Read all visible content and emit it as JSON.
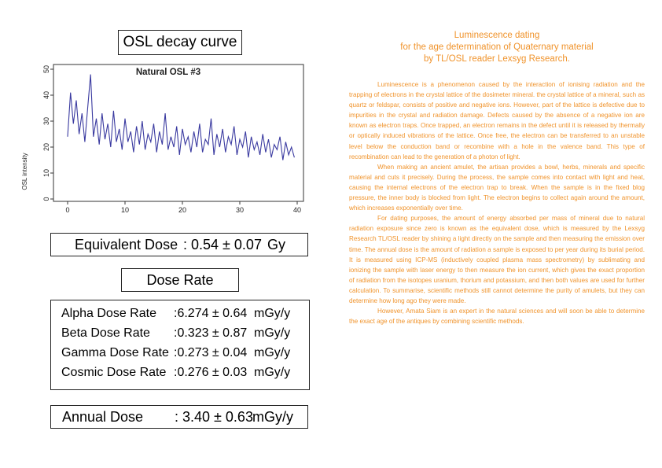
{
  "left": {
    "chart_title_box": "OSL decay curve",
    "equivalent_dose": {
      "label": "Equivalent Dose",
      "value": ": 0.54 ± 0.07",
      "unit": "Gy"
    },
    "dose_rate_title": "Dose Rate",
    "rates": [
      {
        "name": "Alpha Dose Rate",
        "value": ":6.274 ± 0.64",
        "unit": "mGy/y"
      },
      {
        "name": "Beta Dose Rate",
        "value": ":0.323 ± 0.87",
        "unit": "mGy/y"
      },
      {
        "name": "Gamma Dose Rate",
        "value": ":0.273 ± 0.04",
        "unit": "mGy/y"
      },
      {
        "name": "Cosmic Dose Rate",
        "value": ":0.276 ± 0.03",
        "unit": "mGy/y"
      }
    ],
    "annual_dose": {
      "label": "Annual Dose",
      "value": ": 3.40 ± 0.63",
      "unit": "mGy/y"
    }
  },
  "right": {
    "title_lines": [
      "Luminescence dating",
      "for the age determination of Quaternary material",
      "by TL/OSL reader Lexsyg Research."
    ],
    "paragraphs": [
      "Luminescence is a phenomenon caused by the interaction of ionising radiation and the trapping of electrons in the crystal lattice of the dosimeter mineral. the crystal lattice of a mineral, such as quartz or feldspar, consists of positive and negative ions. However, part of the lattice is defective due to impurities in the crystal and radiation damage. Defects caused by the absence of a negative ion are known as electron traps. Once trapped, an electron remains in the defect until it is released by thermally or optically induced vibrations of the lattice. Once free, the electron can be transferred to an unstable level below the conduction band or recombine with a hole in the valence band. This type of recombination can lead to the generation of a photon of light.",
      "When making an ancient amulet, the artisan provides a bowl, herbs, minerals and specific material and cuts it precisely. During the process, the sample comes into contact with light and heat, causing the internal electrons of the electron trap to break. When the sample is in the fixed blog pressure, the inner body is blocked from light. The electron begins to collect again around the amount, which increases exponentially over time.",
      "For dating purposes, the amount of energy absorbed per mass of mineral due to natural radiation exposure since zero is known as the equivalent dose, which is measured by the Lexsyg Research TL/OSL reader by shining a light directly on the sample and then measuring the emission over time. The annual dose is the amount of radiation a sample is exposed to per year during its burial period. It is measured using ICP-MS (inductively coupled plasma mass spectrometry) by sublimating and ionizing the sample with laser energy to then measure the ion current, which gives the exact proportion of radiation from the isotopes uranium, thorium and potassium, and then both values are used for further calculation. To summarise, scientific methods still cannot determine the purity of amulets, but they can determine how long ago they were made.",
      "However, Amata Siam is an expert in the natural sciences and will soon be able to determine the exact age of the antiques by combining scientific methods."
    ]
  },
  "chart_data": {
    "type": "line",
    "title": "Natural OSL #3",
    "xlabel": "",
    "ylabel": "OSL intensity",
    "xlim": [
      0,
      40
    ],
    "ylim": [
      0,
      50
    ],
    "xticks": [
      0,
      10,
      20,
      30,
      40
    ],
    "yticks": [
      0,
      10,
      20,
      30,
      40,
      50
    ],
    "series_color": "#3a3aa0",
    "x": [
      0,
      0.5,
      1,
      1.5,
      2,
      2.5,
      3,
      3.5,
      4,
      4.5,
      5,
      5.5,
      6,
      6.5,
      7,
      7.5,
      8,
      8.5,
      9,
      9.5,
      10,
      10.5,
      11,
      11.5,
      12,
      12.5,
      13,
      13.5,
      14,
      14.5,
      15,
      15.5,
      16,
      16.5,
      17,
      17.5,
      18,
      18.5,
      19,
      19.5,
      20,
      20.5,
      21,
      21.5,
      22,
      22.5,
      23,
      23.5,
      24,
      24.5,
      25,
      25.5,
      26,
      26.5,
      27,
      27.5,
      28,
      28.5,
      29,
      29.5,
      30,
      30.5,
      31,
      31.5,
      32,
      32.5,
      33,
      33.5,
      34,
      34.5,
      35,
      35.5,
      36,
      36.5,
      37,
      37.5,
      38,
      38.5,
      39,
      39.5
    ],
    "y": [
      24,
      41,
      29,
      38,
      25,
      33,
      22,
      35,
      48,
      24,
      31,
      21,
      33,
      23,
      29,
      20,
      34,
      22,
      27,
      19,
      31,
      22,
      26,
      18,
      28,
      21,
      30,
      19,
      25,
      22,
      29,
      18,
      26,
      21,
      33,
      19,
      24,
      20,
      28,
      17,
      27,
      21,
      24,
      18,
      26,
      20,
      29,
      18,
      23,
      21,
      31,
      17,
      25,
      20,
      27,
      18,
      24,
      21,
      28,
      17,
      23,
      20,
      26,
      16,
      24,
      19,
      22,
      17,
      25,
      18,
      23,
      16,
      21,
      19,
      24,
      15,
      22,
      17,
      20,
      16
    ]
  }
}
